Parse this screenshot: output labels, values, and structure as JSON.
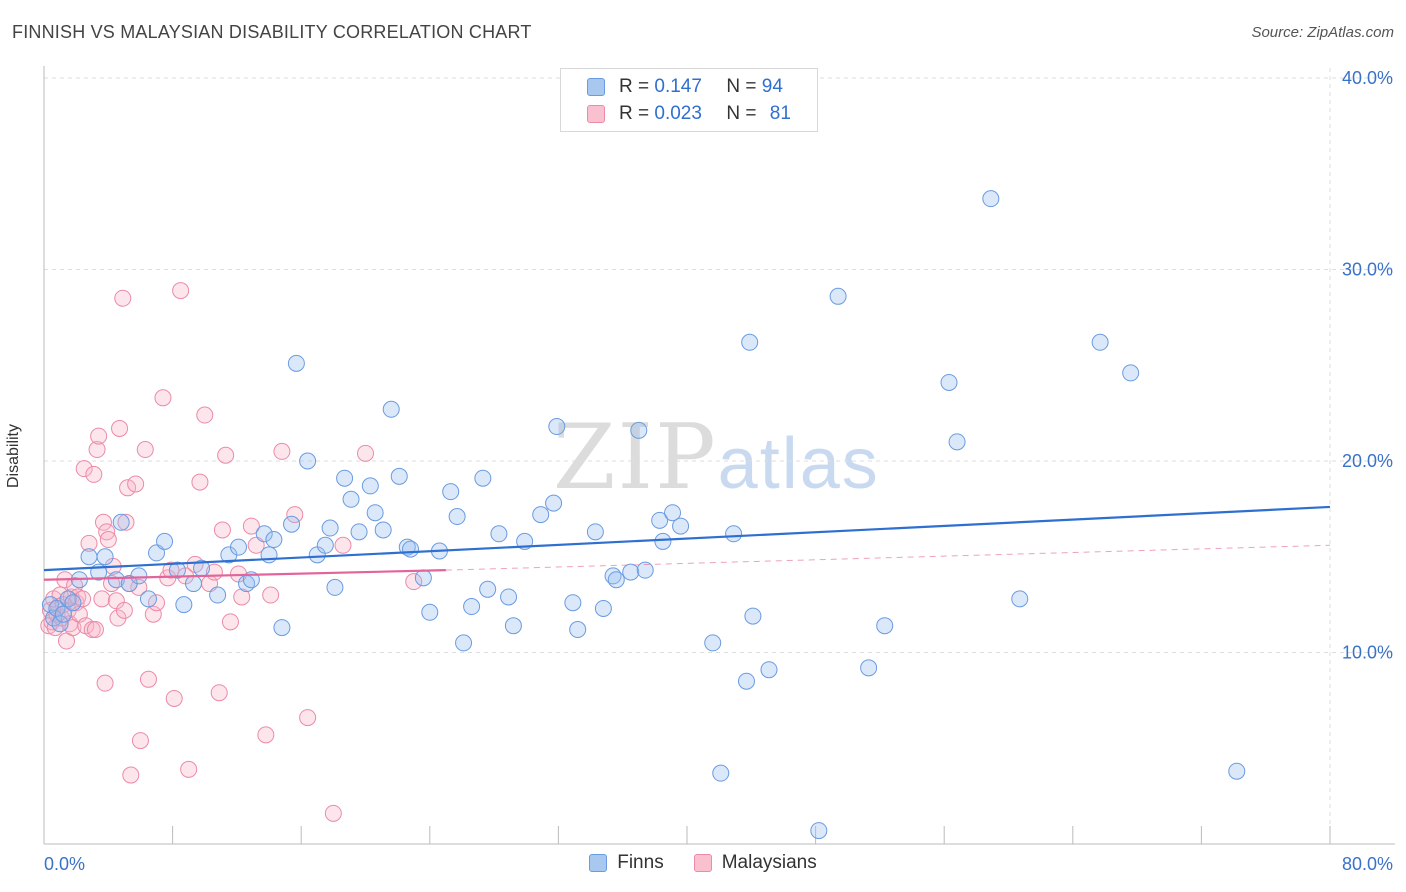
{
  "header": {
    "title": "FINNISH VS MALAYSIAN DISABILITY CORRELATION CHART",
    "source": "Source: ZipAtlas.com"
  },
  "watermark": {
    "zip": "ZIP",
    "atlas": "atlas"
  },
  "legend": {
    "rows": [
      {
        "r_label": "R =",
        "r_value": "0.147",
        "n_label": "N =",
        "n_value": "94",
        "color": "#a8c8f0",
        "border": "#6a9be0"
      },
      {
        "r_label": "R =",
        "r_value": "0.023",
        "n_label": "N =",
        "n_value": "81",
        "color": "#f9c0d0",
        "border": "#ec8aa8"
      }
    ]
  },
  "bottom_legend": [
    {
      "label": "Finns",
      "color": "#a8c8f0",
      "border": "#6a9be0"
    },
    {
      "label": "Malaysians",
      "color": "#f9c0d0",
      "border": "#ec8aa8"
    }
  ],
  "colors": {
    "finns_fill": "rgba(150,190,240,0.35)",
    "finns_stroke": "#6a9be0",
    "finns_line": "#2f6fd0",
    "malay_fill": "rgba(248,180,200,0.35)",
    "malay_stroke": "#ec8aa8",
    "malay_line": "#e2649a",
    "tick_text": "#3a72c8",
    "grid": "#dddddd"
  },
  "chart_data": {
    "type": "scatter",
    "title": "FINNISH VS MALAYSIAN DISABILITY CORRELATION CHART",
    "xlabel": "",
    "ylabel": "Disability",
    "xlim": [
      0,
      80
    ],
    "ylim": [
      0,
      40
    ],
    "x_tick_labels": [
      "0.0%",
      "80.0%"
    ],
    "y_ticks": [
      10,
      20,
      30,
      40
    ],
    "y_tick_labels": [
      "10.0%",
      "20.0%",
      "30.0%",
      "40.0%"
    ],
    "grid": true,
    "legend_position": "top-center",
    "series": [
      {
        "name": "Finns",
        "r": 0.147,
        "n": 94,
        "trend": {
          "x": [
            0,
            80
          ],
          "y": [
            14.3,
            17.6
          ]
        },
        "points": [
          [
            0.4,
            12.5
          ],
          [
            0.6,
            11.8
          ],
          [
            0.8,
            12.3
          ],
          [
            1.0,
            11.5
          ],
          [
            1.2,
            12.0
          ],
          [
            1.5,
            12.8
          ],
          [
            1.8,
            12.6
          ],
          [
            2.2,
            13.8
          ],
          [
            2.8,
            15.0
          ],
          [
            3.4,
            14.2
          ],
          [
            3.8,
            15.0
          ],
          [
            4.5,
            13.8
          ],
          [
            4.8,
            16.8
          ],
          [
            5.3,
            13.6
          ],
          [
            5.9,
            14.0
          ],
          [
            6.5,
            12.8
          ],
          [
            7.0,
            15.2
          ],
          [
            7.5,
            15.8
          ],
          [
            8.3,
            14.3
          ],
          [
            8.7,
            12.5
          ],
          [
            9.3,
            13.6
          ],
          [
            9.8,
            14.4
          ],
          [
            10.8,
            13.0
          ],
          [
            11.5,
            15.1
          ],
          [
            12.1,
            15.5
          ],
          [
            12.6,
            13.6
          ],
          [
            12.9,
            13.8
          ],
          [
            13.7,
            16.2
          ],
          [
            14.0,
            15.1
          ],
          [
            14.3,
            15.9
          ],
          [
            14.8,
            11.3
          ],
          [
            15.4,
            16.7
          ],
          [
            15.7,
            25.1
          ],
          [
            16.4,
            20.0
          ],
          [
            17.0,
            15.1
          ],
          [
            17.5,
            15.6
          ],
          [
            17.8,
            16.5
          ],
          [
            18.1,
            13.4
          ],
          [
            18.7,
            19.1
          ],
          [
            19.1,
            18.0
          ],
          [
            19.6,
            16.3
          ],
          [
            20.3,
            18.7
          ],
          [
            20.6,
            17.3
          ],
          [
            21.1,
            16.4
          ],
          [
            21.6,
            22.7
          ],
          [
            22.1,
            19.2
          ],
          [
            22.6,
            15.5
          ],
          [
            22.8,
            15.4
          ],
          [
            23.6,
            13.9
          ],
          [
            24.0,
            12.1
          ],
          [
            24.6,
            15.3
          ],
          [
            25.3,
            18.4
          ],
          [
            25.7,
            17.1
          ],
          [
            26.1,
            10.5
          ],
          [
            26.6,
            12.4
          ],
          [
            27.3,
            19.1
          ],
          [
            27.6,
            13.3
          ],
          [
            28.3,
            16.2
          ],
          [
            28.9,
            12.9
          ],
          [
            29.2,
            11.4
          ],
          [
            29.9,
            15.8
          ],
          [
            30.9,
            17.2
          ],
          [
            31.7,
            17.8
          ],
          [
            31.9,
            21.8
          ],
          [
            32.9,
            12.6
          ],
          [
            33.2,
            11.2
          ],
          [
            34.3,
            16.3
          ],
          [
            34.8,
            12.3
          ],
          [
            35.4,
            14.0
          ],
          [
            35.6,
            13.8
          ],
          [
            36.5,
            14.2
          ],
          [
            37.0,
            21.6
          ],
          [
            37.4,
            14.3
          ],
          [
            38.3,
            16.9
          ],
          [
            38.5,
            15.8
          ],
          [
            39.1,
            17.3
          ],
          [
            39.6,
            16.6
          ],
          [
            41.6,
            10.5
          ],
          [
            42.1,
            3.7
          ],
          [
            42.9,
            16.2
          ],
          [
            43.7,
            8.5
          ],
          [
            43.9,
            26.2
          ],
          [
            44.1,
            11.9
          ],
          [
            45.1,
            9.1
          ],
          [
            48.2,
            0.7
          ],
          [
            49.4,
            28.6
          ],
          [
            51.3,
            9.2
          ],
          [
            52.3,
            11.4
          ],
          [
            56.3,
            24.1
          ],
          [
            56.8,
            21.0
          ],
          [
            58.9,
            33.7
          ],
          [
            60.7,
            12.8
          ],
          [
            65.7,
            26.2
          ],
          [
            67.6,
            24.6
          ],
          [
            74.2,
            3.8
          ]
        ]
      },
      {
        "name": "Malaysians",
        "r": 0.023,
        "n": 81,
        "trend": {
          "x": [
            0,
            25
          ],
          "y": [
            13.8,
            14.3
          ]
        },
        "trend_dashed": {
          "x": [
            25,
            80
          ],
          "y": [
            14.3,
            15.6
          ]
        },
        "points": [
          [
            0.3,
            11.4
          ],
          [
            0.4,
            12.2
          ],
          [
            0.5,
            11.6
          ],
          [
            0.6,
            12.8
          ],
          [
            0.7,
            11.3
          ],
          [
            0.8,
            12.0
          ],
          [
            0.9,
            12.4
          ],
          [
            1.0,
            13.0
          ],
          [
            1.1,
            11.8
          ],
          [
            1.2,
            12.5
          ],
          [
            1.3,
            13.8
          ],
          [
            1.4,
            10.6
          ],
          [
            1.5,
            12.2
          ],
          [
            1.6,
            11.5
          ],
          [
            1.7,
            12.9
          ],
          [
            1.8,
            11.3
          ],
          [
            1.9,
            13.5
          ],
          [
            2.0,
            12.6
          ],
          [
            2.1,
            12.9
          ],
          [
            2.2,
            12.0
          ],
          [
            2.4,
            12.8
          ],
          [
            2.5,
            19.6
          ],
          [
            2.6,
            11.4
          ],
          [
            2.8,
            15.7
          ],
          [
            3.0,
            11.2
          ],
          [
            3.1,
            19.3
          ],
          [
            3.2,
            11.2
          ],
          [
            3.3,
            20.6
          ],
          [
            3.4,
            21.3
          ],
          [
            3.6,
            12.8
          ],
          [
            3.7,
            16.8
          ],
          [
            3.8,
            8.4
          ],
          [
            3.9,
            16.3
          ],
          [
            4.0,
            15.9
          ],
          [
            4.2,
            13.6
          ],
          [
            4.3,
            14.5
          ],
          [
            4.5,
            12.7
          ],
          [
            4.6,
            11.8
          ],
          [
            4.7,
            21.7
          ],
          [
            4.9,
            28.5
          ],
          [
            5.0,
            12.2
          ],
          [
            5.1,
            16.8
          ],
          [
            5.2,
            18.6
          ],
          [
            5.4,
            3.6
          ],
          [
            5.7,
            18.8
          ],
          [
            5.9,
            13.4
          ],
          [
            6.0,
            5.4
          ],
          [
            6.3,
            20.6
          ],
          [
            6.5,
            8.6
          ],
          [
            6.8,
            12.0
          ],
          [
            7.0,
            12.6
          ],
          [
            7.4,
            23.3
          ],
          [
            7.7,
            13.9
          ],
          [
            7.9,
            14.3
          ],
          [
            8.1,
            7.6
          ],
          [
            8.5,
            28.9
          ],
          [
            8.8,
            14.0
          ],
          [
            9.0,
            3.9
          ],
          [
            9.4,
            14.6
          ],
          [
            9.7,
            18.9
          ],
          [
            10.0,
            22.4
          ],
          [
            10.3,
            13.6
          ],
          [
            10.6,
            14.2
          ],
          [
            10.9,
            7.9
          ],
          [
            11.1,
            16.4
          ],
          [
            11.3,
            20.3
          ],
          [
            11.6,
            11.6
          ],
          [
            12.1,
            14.1
          ],
          [
            12.3,
            12.9
          ],
          [
            12.9,
            16.6
          ],
          [
            13.2,
            15.6
          ],
          [
            13.8,
            5.7
          ],
          [
            14.1,
            13.0
          ],
          [
            14.8,
            20.5
          ],
          [
            15.6,
            17.2
          ],
          [
            16.4,
            6.6
          ],
          [
            18.0,
            1.6
          ],
          [
            18.6,
            15.6
          ],
          [
            20.0,
            20.4
          ],
          [
            23.0,
            13.7
          ],
          [
            5.3,
            13.6
          ]
        ]
      }
    ]
  }
}
